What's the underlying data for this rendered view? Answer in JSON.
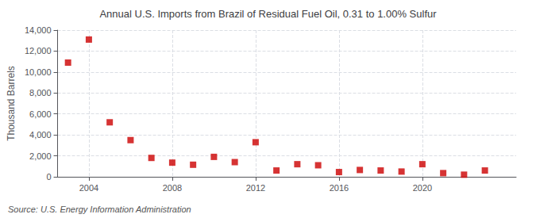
{
  "chart_data": {
    "type": "scatter",
    "title": "Annual U.S. Imports from Brazil of Residual Fuel Oil, 0.31 to 1.00% Sulfur",
    "ylabel": "Thousand Barrels",
    "annotation": "Source: U.S. Energy Information Administration",
    "x": [
      2003,
      2004,
      2005,
      2006,
      2007,
      2008,
      2009,
      2010,
      2011,
      2012,
      2013,
      2014,
      2015,
      2016,
      2017,
      2018,
      2019,
      2020,
      2021,
      2022,
      2023
    ],
    "values": [
      10900,
      13100,
      5200,
      3500,
      1800,
      1350,
      1150,
      1900,
      1400,
      3300,
      600,
      1200,
      1100,
      450,
      650,
      600,
      500,
      1200,
      350,
      200,
      600
    ],
    "color": "#cc0000",
    "marker": "square",
    "xlim": [
      2002.5,
      2024.5
    ],
    "xticks": [
      2004,
      2008,
      2012,
      2016,
      2020
    ],
    "ylim": [
      0,
      14000
    ],
    "yticks": [
      0,
      {
        "value": 2000,
        "label": "2,000"
      },
      {
        "value": 4000,
        "label": "4,000"
      },
      {
        "value": 6000,
        "label": "6,000"
      },
      {
        "value": 8000,
        "label": "8,000"
      },
      {
        "value": 10000,
        "label": "10,000"
      },
      {
        "value": 12000,
        "label": "12,000"
      },
      {
        "value": 14000,
        "label": "14,000"
      }
    ],
    "grid": true
  }
}
